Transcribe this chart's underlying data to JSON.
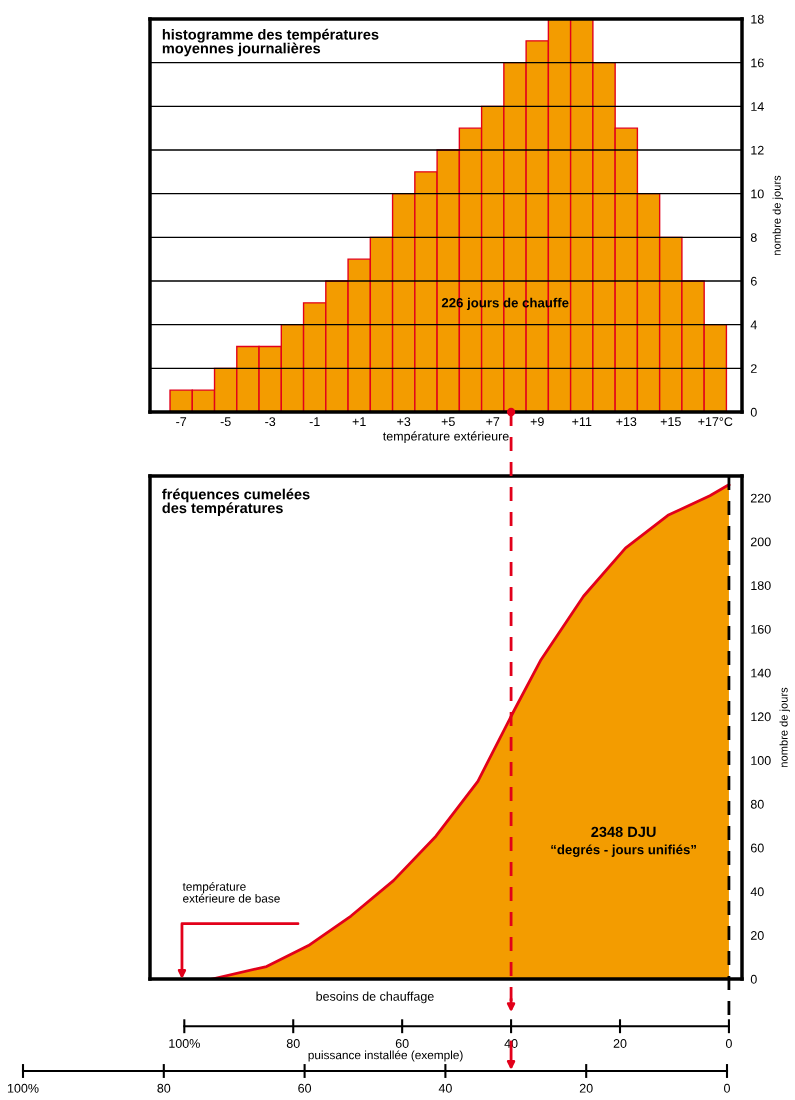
{
  "chart_data": [
    {
      "type": "histogram",
      "title": "histogramme des températures\nmoyennes journalières",
      "xlabel": "température extérieure",
      "ylabel": "nombre de jours",
      "bins": [
        -7.5,
        -6.5,
        -5.5,
        -4.5,
        -3.5,
        -2.5,
        -1.5,
        -0.5,
        0.5,
        1.5,
        2.5,
        3.5,
        4.5,
        5.5,
        6.5,
        7.5,
        8.5,
        9.5,
        10.5,
        11.5,
        12.5,
        13.5,
        14.5,
        15.5,
        16.5,
        17.5
      ],
      "values": [
        1,
        1,
        2,
        3,
        3,
        4,
        5,
        6,
        7,
        8,
        10,
        11,
        12,
        13,
        14,
        16,
        17,
        18,
        18,
        16,
        13,
        10,
        8,
        6,
        4
      ],
      "color": "#f39c00",
      "xlim": [
        -8.4,
        18.2
      ],
      "xticks": [
        -7,
        -5,
        -3,
        -1,
        {
          "value": 1,
          "label": "+1"
        },
        {
          "value": 3,
          "label": "+3"
        },
        {
          "value": 5,
          "label": "+5"
        },
        {
          "value": 7,
          "label": "+7"
        },
        {
          "value": 9,
          "label": "+9"
        },
        {
          "value": 11,
          "label": "+11"
        },
        {
          "value": 13,
          "label": "+13"
        },
        {
          "value": 15,
          "label": "+15"
        },
        {
          "value": 17,
          "label": "+17°C"
        }
      ],
      "ylim": [
        0,
        18
      ],
      "yticks": [
        0,
        2,
        4,
        6,
        8,
        10,
        12,
        14,
        16,
        18
      ],
      "grid": "y",
      "annotations": [
        "226 jours de chauffe"
      ]
    },
    {
      "type": "area",
      "title": "fréquences cumelées\ndes températures",
      "xlabel": "besoins de chauffage",
      "ylabel": "nombre de jours",
      "x2label": "puissance installée (exemple)",
      "series": [
        {
          "color": "#f39c00",
          "x": [
            94.9,
            84.9,
            77.2,
            69.4,
            61.6,
            53.8,
            46.1,
            39.4,
            34.5,
            26.7,
            19.0,
            11.2,
            3.5,
            0
          ],
          "values": [
            0,
            5.7,
            15.3,
            28.8,
            45,
            65.3,
            90.4,
            123,
            146,
            175,
            197,
            212,
            221,
            226
          ]
        }
      ],
      "xlim": [
        106.3,
        -2.4
      ],
      "xticks": [
        {
          "value": 100,
          "label": "100%"
        },
        80,
        60,
        40,
        20,
        0
      ],
      "x2lim": [
        100,
        0
      ],
      "x2ticks": [
        {
          "value": 100,
          "label": "100%"
        },
        80,
        60,
        40,
        20,
        0
      ],
      "ylim": [
        0,
        230
      ],
      "yticks": [
        0,
        20,
        40,
        60,
        80,
        100,
        120,
        140,
        160,
        180,
        200,
        220
      ],
      "annotations": [
        "2348 DJU",
        "“degrés - jours unifiés”",
        "température\nextérieure de base"
      ],
      "ref_lines": [
        {
          "axis": "x",
          "value": 40,
          "color": "#e2001a",
          "line_style": "dashed"
        },
        {
          "axis": "x",
          "value": 0,
          "color": "#000000",
          "line_style": "dashed"
        }
      ]
    }
  ]
}
